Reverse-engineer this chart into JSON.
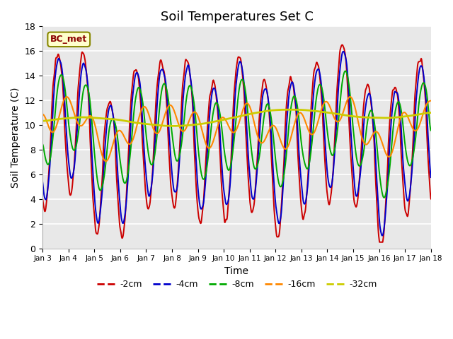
{
  "title": "Soil Temperatures Set C",
  "xlabel": "Time",
  "ylabel": "Soil Temperature (C)",
  "ylim": [
    0,
    18
  ],
  "xlim_start": 0,
  "xlim_end": 360,
  "xtick_positions": [
    0,
    24,
    48,
    72,
    96,
    120,
    144,
    168,
    192,
    216,
    240,
    264,
    288,
    312,
    336,
    360
  ],
  "xtick_labels": [
    "Jan 3",
    "Jan 4",
    "Jan 5",
    "Jan 6",
    "Jan 7",
    "Jan 8",
    "Jan 9",
    "Jan 10",
    "Jan 11",
    "Jan 12",
    "Jan 13",
    "Jan 14",
    "Jan 15",
    "Jan 16",
    "Jan 17",
    "Jan 18"
  ],
  "ytick_positions": [
    0,
    2,
    4,
    6,
    8,
    10,
    12,
    14,
    16,
    18
  ],
  "series_colors": [
    "#cc0000",
    "#0000cc",
    "#00aa00",
    "#ff8800",
    "#cccc00"
  ],
  "series_labels": [
    "-2cm",
    "-4cm",
    "-8cm",
    "-16cm",
    "-32cm"
  ],
  "annotation_text": "BC_met",
  "bg_color": "#e8e8e8",
  "fig_color": "#ffffff",
  "grid_color": "#ffffff",
  "title_fontsize": 13,
  "axis_label_fontsize": 10
}
